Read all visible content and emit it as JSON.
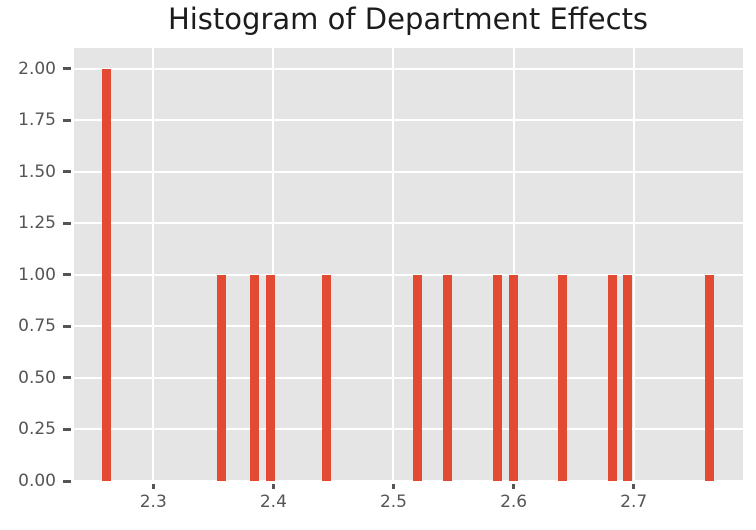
{
  "chart_data": {
    "type": "bar",
    "subtype": "histogram",
    "title": "Histogram of Department Effects",
    "xlabel": "",
    "ylabel": "",
    "bin_centers": [
      2.261,
      2.357,
      2.384,
      2.398,
      2.444,
      2.52,
      2.545,
      2.587,
      2.6,
      2.641,
      2.682,
      2.695,
      2.763
    ],
    "counts": [
      2,
      1,
      1,
      1,
      1,
      1,
      1,
      1,
      1,
      1,
      1,
      1,
      1
    ],
    "bar_width_data": 0.0075,
    "xlim": [
      2.234,
      2.791
    ],
    "ylim": [
      0,
      2.1
    ],
    "x_ticks": [
      2.3,
      2.4,
      2.5,
      2.6,
      2.7
    ],
    "x_tick_labels": [
      "2.3",
      "2.4",
      "2.5",
      "2.6",
      "2.7"
    ],
    "y_ticks": [
      0,
      0.25,
      0.5,
      0.75,
      1,
      1.25,
      1.5,
      1.75,
      2
    ],
    "y_tick_labels": [
      "0.00",
      "0.25",
      "0.50",
      "0.75",
      "1.00",
      "1.25",
      "1.50",
      "1.75",
      "2.00"
    ],
    "grid": true,
    "legend": null,
    "colors": {
      "bar": "#E24A33",
      "plot_background": "#E5E5E5",
      "gridline": "#FFFFFF",
      "tick_label": "#555555",
      "tick_mark": "#555555",
      "title": "#1C1C1C",
      "figure_background": "#FFFFFF"
    }
  }
}
